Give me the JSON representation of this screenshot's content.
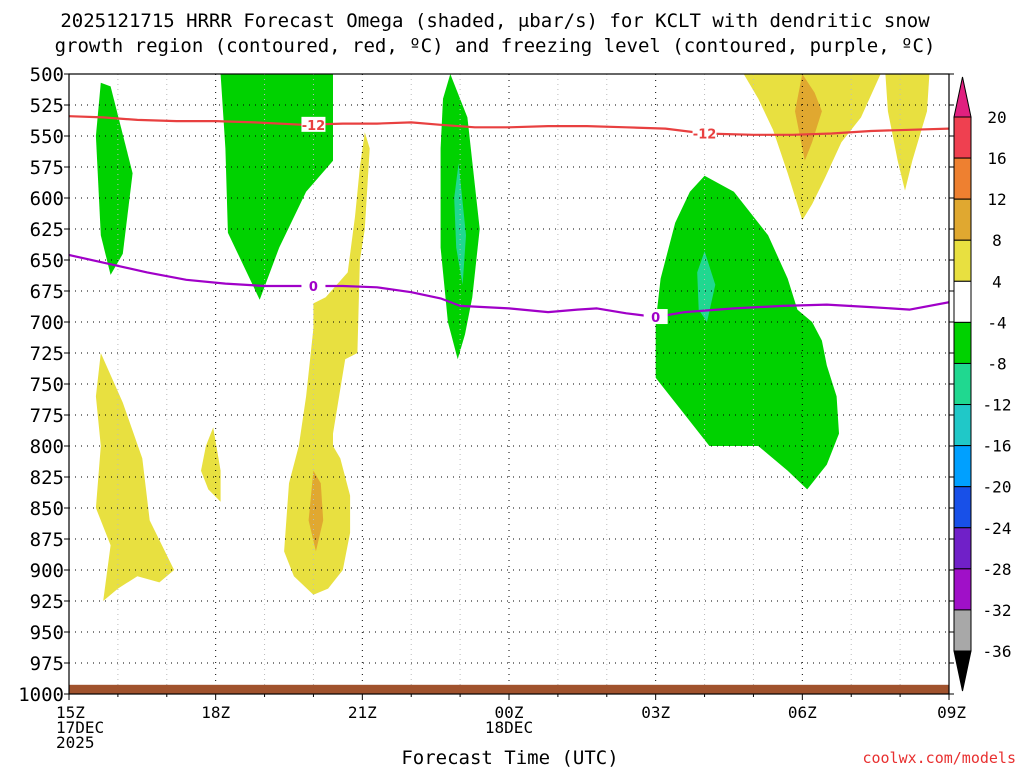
{
  "chart_data": {
    "type": "contour",
    "title_line1": "2025121715 HRRR Forecast Omega (shaded, μbar/s) for KCLT with dendritic snow",
    "title_line2": "growth region (contoured, red, ºC) and freezing level (contoured, purple, ºC)",
    "xlabel": "Forecast Time (UTC)",
    "watermark": "coolwx.com/models",
    "x_range_hours": [
      0,
      18
    ],
    "y_range_hpa": [
      1000,
      500
    ],
    "x_ticks": [
      {
        "hour": 0,
        "lines": [
          "15Z",
          "17DEC",
          "2025"
        ]
      },
      {
        "hour": 3,
        "lines": [
          "18Z"
        ]
      },
      {
        "hour": 6,
        "lines": [
          "21Z"
        ]
      },
      {
        "hour": 9,
        "lines": [
          "00Z",
          "18DEC"
        ]
      },
      {
        "hour": 12,
        "lines": [
          "03Z"
        ]
      },
      {
        "hour": 15,
        "lines": [
          "06Z"
        ]
      },
      {
        "hour": 18,
        "lines": [
          "09Z"
        ]
      }
    ],
    "y_ticks": [
      500,
      525,
      550,
      575,
      600,
      625,
      650,
      675,
      700,
      725,
      750,
      775,
      800,
      825,
      850,
      875,
      900,
      925,
      950,
      975,
      1000
    ],
    "colorbar": {
      "labels": [
        "20",
        "16",
        "12",
        "8",
        "4",
        "-4",
        "-8",
        "-12",
        "-16",
        "-20",
        "-24",
        "-28",
        "-32",
        "-36"
      ],
      "colors": [
        "#ef4050",
        "#ee8030",
        "#e0a830",
        "#e8e040",
        "#ffffff",
        "#00d200",
        "#20d890",
        "#20c8c8",
        "#00a0ff",
        "#1850e8",
        "#7020c8",
        "#a010c8",
        "#a8a8a8"
      ],
      "top_arrow_color": "#e0207f",
      "bottom_arrow_color": "#000000"
    },
    "contours": [
      {
        "name": "dendritic-snow-growth -12C",
        "color": "#e84040",
        "label": "-12",
        "label_points": [
          {
            "hour": 5.0,
            "hpa": 541
          },
          {
            "hour": 13.0,
            "hpa": 548
          }
        ],
        "points": [
          [
            0,
            534
          ],
          [
            0.7,
            535
          ],
          [
            1.4,
            537
          ],
          [
            2.2,
            538
          ],
          [
            3,
            538
          ],
          [
            3.8,
            539
          ],
          [
            4.8,
            541
          ],
          [
            5.6,
            540
          ],
          [
            6.3,
            540
          ],
          [
            7,
            539
          ],
          [
            7.6,
            541
          ],
          [
            8.3,
            543
          ],
          [
            9,
            543
          ],
          [
            9.8,
            542
          ],
          [
            10.6,
            542
          ],
          [
            11.4,
            543
          ],
          [
            12.2,
            544
          ],
          [
            13,
            548
          ],
          [
            14,
            549
          ],
          [
            14.8,
            549
          ],
          [
            15.6,
            548
          ],
          [
            16.4,
            546
          ],
          [
            17.2,
            545
          ],
          [
            18,
            544
          ]
        ]
      },
      {
        "name": "freezing-level 0C",
        "color": "#a000c8",
        "label": "0",
        "label_points": [
          {
            "hour": 5.0,
            "hpa": 671
          },
          {
            "hour": 12.0,
            "hpa": 696
          }
        ],
        "points": [
          [
            0,
            646
          ],
          [
            0.8,
            653
          ],
          [
            1.6,
            660
          ],
          [
            2.4,
            666
          ],
          [
            3.2,
            669
          ],
          [
            4,
            671
          ],
          [
            4.8,
            671
          ],
          [
            5.6,
            671
          ],
          [
            6.3,
            672
          ],
          [
            7,
            676
          ],
          [
            7.6,
            681
          ],
          [
            8,
            687
          ],
          [
            9,
            689
          ],
          [
            9.8,
            692
          ],
          [
            10.4,
            690
          ],
          [
            10.8,
            689
          ],
          [
            11.4,
            693
          ],
          [
            12,
            696
          ],
          [
            12.6,
            692
          ],
          [
            13.6,
            689
          ],
          [
            14.6,
            687
          ],
          [
            15.5,
            686
          ],
          [
            16.4,
            688
          ],
          [
            17.2,
            690
          ],
          [
            18,
            684
          ]
        ]
      }
    ],
    "shaded_regions": [
      {
        "name": "omega -4 to -8 at 15Z-16Z",
        "color": "#00d200",
        "points": [
          [
            0.65,
            507
          ],
          [
            0.85,
            510
          ],
          [
            1.3,
            580
          ],
          [
            1.1,
            645
          ],
          [
            0.85,
            662
          ],
          [
            0.65,
            630
          ],
          [
            0.55,
            550
          ]
        ]
      },
      {
        "name": "omega -4 to -8 at 18Z-20Z",
        "color": "#00d200",
        "points": [
          [
            3.1,
            500
          ],
          [
            5.4,
            500
          ],
          [
            5.4,
            570
          ],
          [
            4.85,
            595
          ],
          [
            4.3,
            640
          ],
          [
            3.9,
            682
          ],
          [
            3.25,
            628
          ],
          [
            3.2,
            560
          ]
        ]
      },
      {
        "name": "omega -4 to -8 at 22Z",
        "color": "#00d200",
        "points": [
          [
            7.8,
            500
          ],
          [
            8.15,
            535
          ],
          [
            8.4,
            625
          ],
          [
            8.25,
            680
          ],
          [
            8.1,
            710
          ],
          [
            7.95,
            730
          ],
          [
            7.75,
            700
          ],
          [
            7.6,
            640
          ],
          [
            7.6,
            560
          ],
          [
            7.65,
            520
          ]
        ]
      },
      {
        "name": "omega -8 to -12 at 22Z",
        "color": "#20d890",
        "points": [
          [
            7.97,
            572
          ],
          [
            8.12,
            630
          ],
          [
            8.05,
            670
          ],
          [
            7.92,
            640
          ],
          [
            7.88,
            600
          ]
        ]
      },
      {
        "name": "omega -4 to -8 at 03Z-07Z",
        "color": "#00d200",
        "points": [
          [
            13,
            582
          ],
          [
            13.6,
            595
          ],
          [
            14.3,
            630
          ],
          [
            14.7,
            665
          ],
          [
            14.9,
            690
          ],
          [
            15.2,
            700
          ],
          [
            15.4,
            715
          ],
          [
            15.5,
            735
          ],
          [
            15.7,
            760
          ],
          [
            15.75,
            790
          ],
          [
            15.5,
            815
          ],
          [
            15.1,
            835
          ],
          [
            14.7,
            820
          ],
          [
            14.1,
            800
          ],
          [
            13.1,
            800
          ],
          [
            12.5,
            770
          ],
          [
            12,
            745
          ],
          [
            12,
            700
          ],
          [
            12.1,
            665
          ],
          [
            12.4,
            620
          ],
          [
            12.7,
            595
          ]
        ]
      },
      {
        "name": "omega -8 to -12 at 04Z",
        "color": "#20d890",
        "points": [
          [
            13,
            643
          ],
          [
            13.22,
            670
          ],
          [
            13.05,
            700
          ],
          [
            12.88,
            690
          ],
          [
            12.85,
            660
          ]
        ]
      },
      {
        "name": "omega 4 to 8 at 16Z",
        "color": "#e8e040",
        "points": [
          [
            0.65,
            725
          ],
          [
            1.1,
            765
          ],
          [
            1.5,
            810
          ],
          [
            1.65,
            860
          ],
          [
            2.15,
            900
          ],
          [
            1.85,
            910
          ],
          [
            1.4,
            905
          ],
          [
            1.0,
            915
          ],
          [
            0.7,
            925
          ],
          [
            0.85,
            880
          ],
          [
            0.55,
            850
          ],
          [
            0.65,
            800
          ],
          [
            0.55,
            760
          ]
        ]
      },
      {
        "name": "omega 4 to 8 at 17Z-18Z",
        "color": "#e8e040",
        "points": [
          [
            2.95,
            785
          ],
          [
            3.1,
            820
          ],
          [
            3.1,
            845
          ],
          [
            2.85,
            835
          ],
          [
            2.7,
            820
          ],
          [
            2.8,
            800
          ]
        ]
      },
      {
        "name": "omega 4 to 8 at 20Z-21Z",
        "color": "#e8e040",
        "points": [
          [
            6.05,
            547
          ],
          [
            6.15,
            560
          ],
          [
            6.05,
            625
          ],
          [
            5.95,
            650
          ],
          [
            5.9,
            725
          ],
          [
            5.65,
            730
          ],
          [
            5.4,
            790
          ],
          [
            5.4,
            800
          ],
          [
            5.55,
            810
          ],
          [
            5.75,
            840
          ],
          [
            5.75,
            870
          ],
          [
            5.6,
            900
          ],
          [
            5.3,
            915
          ],
          [
            5.0,
            920
          ],
          [
            4.6,
            905
          ],
          [
            4.4,
            885
          ],
          [
            4.5,
            830
          ],
          [
            4.7,
            800
          ],
          [
            4.85,
            760
          ],
          [
            5.0,
            705
          ],
          [
            5.0,
            685
          ],
          [
            5.25,
            680
          ],
          [
            5.7,
            660
          ],
          [
            5.85,
            615
          ],
          [
            5.95,
            575
          ]
        ]
      },
      {
        "name": "omega 8 to 12 at 20Z",
        "color": "#e0a830",
        "points": [
          [
            5.0,
            820
          ],
          [
            5.15,
            830
          ],
          [
            5.2,
            860
          ],
          [
            5.05,
            885
          ],
          [
            4.9,
            860
          ]
        ]
      },
      {
        "name": "omega 4 to 8 at 05Z-07Z",
        "color": "#e8e040",
        "points": [
          [
            13.8,
            500
          ],
          [
            16.6,
            500
          ],
          [
            16.2,
            535
          ],
          [
            15.8,
            555
          ],
          [
            15.45,
            585
          ],
          [
            15.2,
            605
          ],
          [
            15.0,
            618
          ],
          [
            14.7,
            580
          ],
          [
            14.4,
            545
          ],
          [
            14.1,
            520
          ]
        ]
      },
      {
        "name": "omega 8 to 12 at 06Z",
        "color": "#e0a830",
        "points": [
          [
            15.0,
            500
          ],
          [
            15.25,
            515
          ],
          [
            15.4,
            530
          ],
          [
            15.2,
            555
          ],
          [
            15.05,
            570
          ],
          [
            14.85,
            530
          ]
        ]
      },
      {
        "name": "omega 4 to 8 at 08Z",
        "color": "#e8e040",
        "points": [
          [
            16.7,
            500
          ],
          [
            17.6,
            500
          ],
          [
            17.55,
            530
          ],
          [
            17.25,
            570
          ],
          [
            17.1,
            594
          ],
          [
            16.95,
            570
          ],
          [
            16.75,
            530
          ]
        ]
      }
    ],
    "ground_band": {
      "color": "#a0522d",
      "hpa_top": 995,
      "hpa_bottom": 1000
    }
  }
}
